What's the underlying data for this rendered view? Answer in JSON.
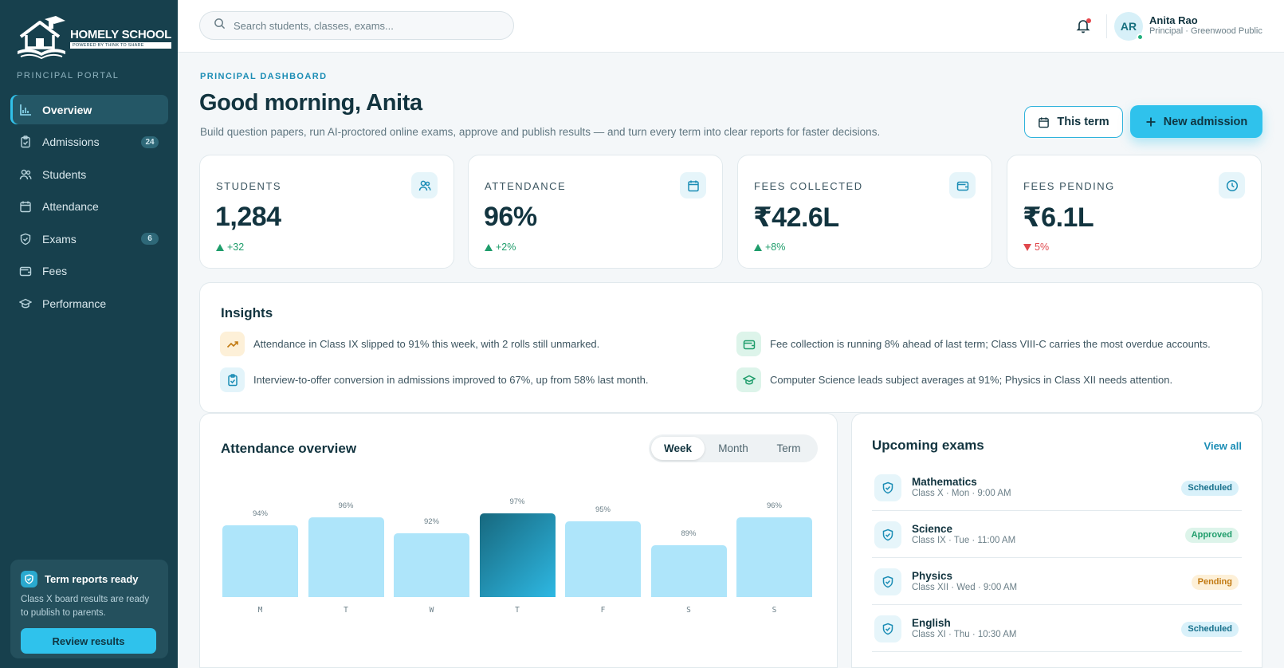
{
  "brand": {
    "name": "HOMELY SCHOOL",
    "tagline": "POWERED BY THINK TO SHARE",
    "portal": "PRINCIPAL PORTAL"
  },
  "nav": [
    {
      "label": "Overview",
      "icon": "bar-chart-icon",
      "active": true
    },
    {
      "label": "Admissions",
      "icon": "clipboard-check-icon",
      "badge": "24"
    },
    {
      "label": "Students",
      "icon": "users-icon"
    },
    {
      "label": "Attendance",
      "icon": "calendar-icon"
    },
    {
      "label": "Exams",
      "icon": "shield-check-icon",
      "badge": "6"
    },
    {
      "label": "Fees",
      "icon": "wallet-icon"
    },
    {
      "label": "Performance",
      "icon": "graduation-cap-icon"
    }
  ],
  "promo": {
    "title": "Term reports ready",
    "text": "Class X board results are ready to publish to parents.",
    "button": "Review results"
  },
  "search": {
    "placeholder": "Search students, classes, exams..."
  },
  "user": {
    "initials": "AR",
    "name": "Anita Rao",
    "role": "Principal · Greenwood Public"
  },
  "header": {
    "kicker": "PRINCIPAL DASHBOARD",
    "greeting": "Good morning, Anita",
    "subtitle": "Build question papers, run AI-proctored online exams, approve and publish results — and turn every term into clear reports for faster decisions.",
    "term_button": "This term",
    "new_button": "New admission"
  },
  "stats": [
    {
      "label": "STUDENTS",
      "value": "1,284",
      "delta": "+32",
      "trend": "up",
      "icon": "users-icon"
    },
    {
      "label": "ATTENDANCE",
      "value": "96%",
      "delta": "+2%",
      "trend": "up",
      "icon": "calendar-icon"
    },
    {
      "label": "FEES COLLECTED",
      "value": "₹42.6L",
      "delta": "+8%",
      "trend": "up",
      "icon": "wallet-icon"
    },
    {
      "label": "FEES PENDING",
      "value": "₹6.1L",
      "delta": "5%",
      "trend": "down",
      "icon": "clock-icon"
    }
  ],
  "insights": {
    "title": "Insights",
    "items": [
      {
        "text": "Attendance in Class IX slipped to 91% this week, with 2 rolls still unmarked.",
        "icon": "trending-icon"
      },
      {
        "text": "Fee collection is running 8% ahead of last term; Class VIII-C carries the most overdue accounts.",
        "icon": "wallet-icon"
      },
      {
        "text": "Interview-to-offer conversion in admissions improved to 67%, up from 58% last month.",
        "icon": "clipboard-check-icon"
      },
      {
        "text": "Computer Science leads subject averages at 91%; Physics in Class XII needs attention.",
        "icon": "graduation-cap-icon"
      }
    ]
  },
  "attendance": {
    "title": "Attendance overview",
    "tabs": [
      "Week",
      "Month",
      "Term"
    ],
    "active_tab": "Week"
  },
  "chart_data": {
    "type": "bar",
    "categories": [
      "M",
      "T",
      "W",
      "T",
      "F",
      "S",
      "S"
    ],
    "values": [
      94,
      96,
      92,
      97,
      95,
      89,
      96
    ],
    "value_labels": [
      "94%",
      "96%",
      "92%",
      "97%",
      "95%",
      "89%",
      "96%"
    ],
    "highlight_index": 3,
    "ylim": [
      0,
      100
    ],
    "colors": {
      "bar": "#aee5fa",
      "highlight": "#17687e"
    }
  },
  "exams": {
    "title": "Upcoming exams",
    "view_all": "View all",
    "items": [
      {
        "name": "Mathematics",
        "meta": "Class X · Mon · 9:00 AM",
        "status": "Scheduled",
        "kind": "scheduled"
      },
      {
        "name": "Science",
        "meta": "Class IX · Tue · 11:00 AM",
        "status": "Approved",
        "kind": "approved"
      },
      {
        "name": "Physics",
        "meta": "Class XII · Wed · 9:00 AM",
        "status": "Pending",
        "kind": "pending"
      },
      {
        "name": "English",
        "meta": "Class XI · Thu · 10:30 AM",
        "status": "Scheduled",
        "kind": "scheduled"
      }
    ]
  },
  "colors": {
    "accent": "#2fc2ec",
    "sidebar": "#17404d",
    "up": "#1f9d6b",
    "down": "#e0484d"
  }
}
